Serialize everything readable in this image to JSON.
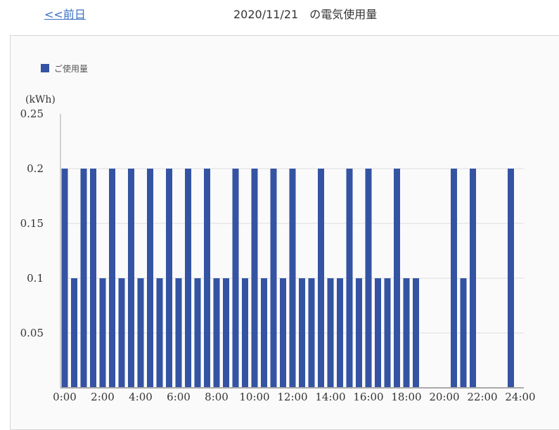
{
  "header": {
    "prev_link": "<<前日",
    "title": "2020/11/21　の電気使用量"
  },
  "colors": {
    "bar": "#3453a3",
    "grid": "#dddddd",
    "axis": "#aaaaaa"
  },
  "chart_data": {
    "type": "bar",
    "ylabel": "(kWh)",
    "ylim": [
      0,
      0.25
    ],
    "yticks": [
      "0.05",
      "0.1",
      "0.15",
      "0.2",
      "0.25"
    ],
    "ytick_values": [
      0.05,
      0.1,
      0.15,
      0.2,
      0.25
    ],
    "xticks": [
      "0:00",
      "2:00",
      "4:00",
      "6:00",
      "8:00",
      "10:00",
      "12:00",
      "14:00",
      "16:00",
      "18:00",
      "20:00",
      "22:00",
      "24:00"
    ],
    "legend": "top-left",
    "grid": true,
    "series": [
      {
        "name": "ご使用量",
        "interval": "30 min",
        "values": [
          0.2,
          0.1,
          0.2,
          0.2,
          0.1,
          0.2,
          0.1,
          0.2,
          0.1,
          0.2,
          0.1,
          0.2,
          0.1,
          0.2,
          0.1,
          0.2,
          0.1,
          0.1,
          0.2,
          0.1,
          0.2,
          0.1,
          0.2,
          0.1,
          0.2,
          0.1,
          0.1,
          0.2,
          0.1,
          0.1,
          0.2,
          0.1,
          0.2,
          0.1,
          0.1,
          0.2,
          0.1,
          0.1,
          0,
          0,
          0,
          0.2,
          0.1,
          0.2,
          0,
          0,
          0,
          0.2
        ]
      }
    ]
  }
}
